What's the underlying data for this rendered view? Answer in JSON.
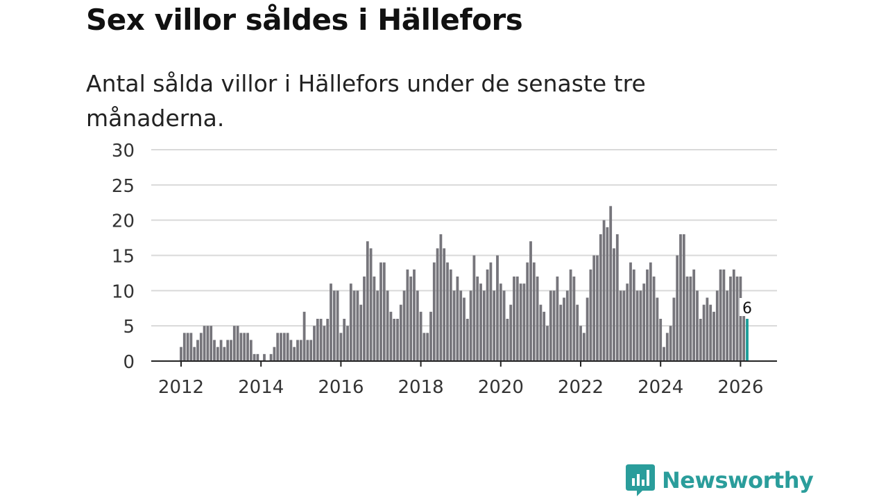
{
  "header": {
    "title": "Sex villor såldes i Hällefors",
    "subtitle": "Antal sålda villor i Hällefors under de senaste tre månaderna."
  },
  "branding": {
    "name": "Newsworthy"
  },
  "colors": {
    "bar": "#76757b",
    "highlight": "#1a9c98",
    "grid": "#d9d9d9",
    "axis": "#222222",
    "brand": "#2a9d9b"
  },
  "chart_data": {
    "type": "bar",
    "title": "Sex villor såldes i Hällefors",
    "xlabel": "",
    "ylabel": "",
    "ylim": [
      0,
      30
    ],
    "yticks": [
      0,
      5,
      10,
      15,
      20,
      25,
      30
    ],
    "xticks": [
      "2012",
      "2014",
      "2016",
      "2018",
      "2020",
      "2022",
      "2024",
      "2026"
    ],
    "start": "2012-01",
    "values": [
      2,
      4,
      4,
      4,
      2,
      3,
      4,
      5,
      5,
      5,
      3,
      2,
      3,
      2,
      3,
      3,
      5,
      5,
      4,
      4,
      4,
      3,
      1,
      1,
      0,
      1,
      0,
      1,
      2,
      4,
      4,
      4,
      4,
      3,
      2,
      3,
      3,
      7,
      3,
      3,
      5,
      6,
      6,
      5,
      6,
      11,
      10,
      10,
      4,
      6,
      5,
      11,
      10,
      10,
      8,
      12,
      17,
      16,
      12,
      10,
      14,
      14,
      10,
      7,
      6,
      6,
      8,
      10,
      13,
      12,
      13,
      10,
      7,
      4,
      4,
      7,
      14,
      16,
      18,
      16,
      14,
      13,
      10,
      12,
      10,
      9,
      6,
      10,
      15,
      12,
      11,
      10,
      13,
      14,
      10,
      15,
      11,
      10,
      6,
      8,
      12,
      12,
      11,
      11,
      14,
      17,
      14,
      12,
      8,
      7,
      5,
      10,
      10,
      12,
      8,
      9,
      10,
      13,
      12,
      8,
      5,
      4,
      9,
      13,
      15,
      15,
      18,
      20,
      19,
      22,
      16,
      18,
      10,
      10,
      11,
      14,
      13,
      10,
      10,
      11,
      13,
      14,
      12,
      9,
      6,
      2,
      4,
      5,
      9,
      15,
      18,
      18,
      12,
      12,
      13,
      10,
      6,
      8,
      9,
      8,
      7,
      10,
      13,
      13,
      10,
      12,
      13,
      12,
      12,
      7,
      6
    ],
    "highlight_last": true,
    "last_label": "6"
  }
}
